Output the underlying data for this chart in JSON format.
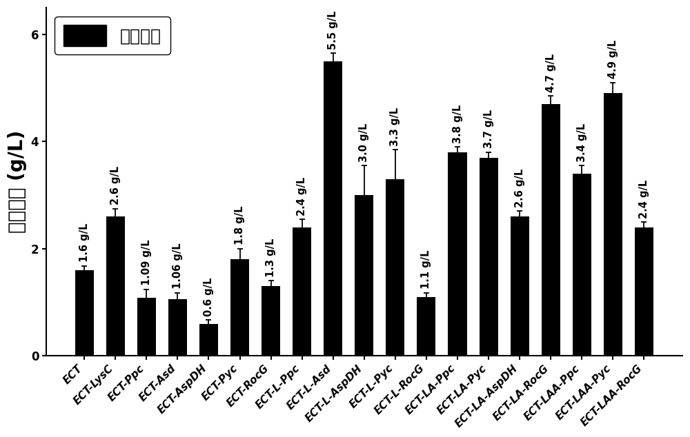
{
  "categories": [
    "ECT",
    "ECT-LysC",
    "ECT-Ppc",
    "ECT-Asd",
    "ECT-AspDH",
    "ECT-Pyc",
    "ECT-RocG",
    "ECT-L-Ppc",
    "ECT-L-Asd",
    "ECT-L-AspDH",
    "ECT-L-Pyc",
    "ECT-L-RocG",
    "ECT-LA-Ppc",
    "ECT-LA-Pyc",
    "ECT-LA-AspDH",
    "ECT-LA-RocG",
    "ECT-LAA-Ppc",
    "ECT-LAA-Pyc",
    "ECT-LAA-RocG"
  ],
  "values": [
    1.6,
    2.6,
    1.09,
    1.06,
    0.6,
    1.8,
    1.3,
    2.4,
    5.5,
    3.0,
    3.3,
    1.1,
    3.8,
    3.7,
    2.6,
    4.7,
    3.4,
    4.9,
    2.4
  ],
  "errors": [
    0.08,
    0.15,
    0.15,
    0.12,
    0.07,
    0.2,
    0.1,
    0.15,
    0.15,
    0.55,
    0.55,
    0.08,
    0.1,
    0.1,
    0.1,
    0.15,
    0.15,
    0.2,
    0.1
  ],
  "labels": [
    "1.6 g/L",
    "2.6 g/L",
    "1.09 g/L",
    "1.06 g/L",
    "0.6 g/L",
    "1.8 g/L",
    "1.3 g/L",
    "2.4 g/L",
    "5.5 g/L",
    "3.0 g/L",
    "3.3 g/L",
    "1.1 g/L",
    "3.8 g/L",
    "3.7 g/L",
    "2.6 g/L",
    "4.7 g/L",
    "3.4 g/L",
    "4.9 g/L",
    "2.4 g/L"
  ],
  "bar_color": "#000000",
  "ylabel_chinese": "四氢喧ᇁ",
  "ylabel_unit": "(g/L)",
  "ylim": [
    0,
    6.5
  ],
  "yticks": [
    0,
    2,
    4,
    6
  ],
  "legend_label": "四氢喧ᇁ",
  "bar_width": 0.6,
  "label_fontsize": 10.5,
  "tick_fontsize": 11,
  "ylabel_fontsize": 20,
  "legend_fontsize": 18
}
